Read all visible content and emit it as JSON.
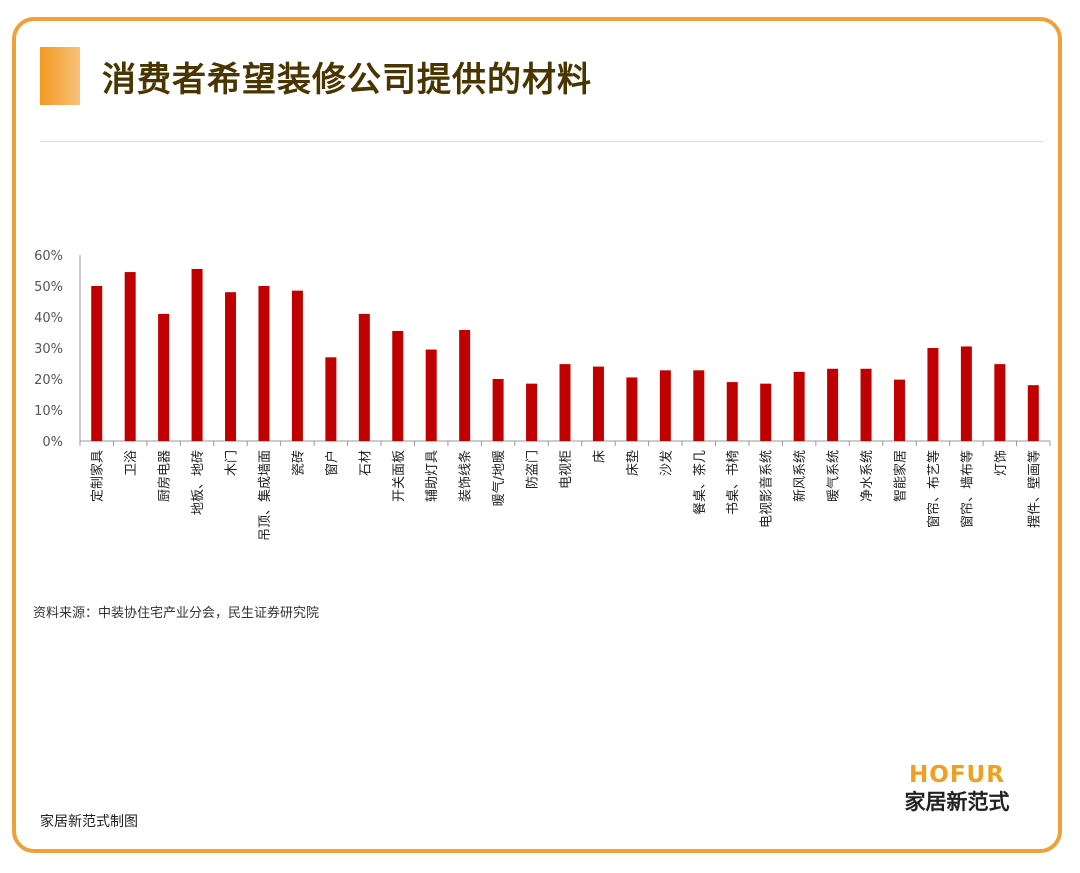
{
  "title": "消费者希望装修公司提供的材料",
  "source": "资料来源：中装协住宅产业分会，民生证券研究院",
  "footer": "家居新范式制图",
  "logo": {
    "brand": "HOFUR",
    "brand_cn": "家居新范式"
  },
  "colors": {
    "accent": "#f0a038",
    "bar": "#c00000",
    "title": "#4a3400"
  },
  "chart_data": {
    "type": "bar",
    "categories": [
      "定制家具",
      "卫浴",
      "厨房电器",
      "地板、地砖",
      "木门",
      "吊顶、集成墙面",
      "瓷砖",
      "窗户",
      "石材",
      "开关面板",
      "辅助灯具",
      "装饰线条",
      "暖气/地暖",
      "防盗门",
      "电视柜",
      "床",
      "床垫",
      "沙发",
      "餐桌、茶几",
      "书桌、书椅",
      "电视影音系统",
      "新风系统",
      "暖气系统",
      "净水系统",
      "智能家居",
      "窗帘、布艺等",
      "窗帘、墙布等",
      "灯饰",
      "摆件、壁画等"
    ],
    "values": [
      50,
      54.5,
      41,
      55.5,
      48,
      50,
      48.5,
      27,
      41,
      35.5,
      29.5,
      35.8,
      20,
      18.5,
      24.8,
      24,
      20.5,
      22.8,
      22.8,
      19,
      18.5,
      22.3,
      23.3,
      23.3,
      19.8,
      30,
      30.5,
      24.8,
      18
    ],
    "yticks": [
      "0%",
      "10%",
      "20%",
      "30%",
      "40%",
      "50%",
      "60%"
    ],
    "ylim": [
      0,
      60
    ],
    "grid": false,
    "legend": "none"
  }
}
